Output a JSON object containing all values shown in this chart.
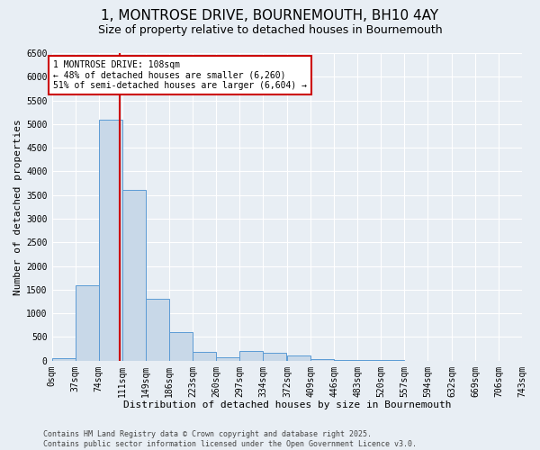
{
  "title_line1": "1, MONTROSE DRIVE, BOURNEMOUTH, BH10 4AY",
  "title_line2": "Size of property relative to detached houses in Bournemouth",
  "xlabel": "Distribution of detached houses by size in Bournemouth",
  "ylabel": "Number of detached properties",
  "bins": [
    0,
    37,
    74,
    111,
    149,
    186,
    223,
    260,
    297,
    334,
    372,
    409,
    446,
    483,
    520,
    557,
    594,
    632,
    669,
    706,
    743
  ],
  "bin_labels": [
    "0sqm",
    "37sqm",
    "74sqm",
    "111sqm",
    "149sqm",
    "186sqm",
    "223sqm",
    "260sqm",
    "297sqm",
    "334sqm",
    "372sqm",
    "409sqm",
    "446sqm",
    "483sqm",
    "520sqm",
    "557sqm",
    "594sqm",
    "632sqm",
    "669sqm",
    "706sqm",
    "743sqm"
  ],
  "bar_heights": [
    50,
    1600,
    5100,
    3600,
    1300,
    600,
    180,
    80,
    200,
    160,
    100,
    30,
    5,
    5,
    5,
    0,
    0,
    0,
    0,
    0
  ],
  "bar_color": "#c8d8e8",
  "bar_edge_color": "#5b9bd5",
  "property_size": 108,
  "annotation_text": "1 MONTROSE DRIVE: 108sqm\n← 48% of detached houses are smaller (6,260)\n51% of semi-detached houses are larger (6,604) →",
  "annotation_box_color": "#ffffff",
  "annotation_box_edge": "#cc0000",
  "red_line_color": "#cc0000",
  "ylim": [
    0,
    6500
  ],
  "yticks": [
    0,
    500,
    1000,
    1500,
    2000,
    2500,
    3000,
    3500,
    4000,
    4500,
    5000,
    5500,
    6000,
    6500
  ],
  "background_color": "#e8eef4",
  "plot_bg_color": "#e8eef4",
  "grid_color": "#ffffff",
  "footer_text": "Contains HM Land Registry data © Crown copyright and database right 2025.\nContains public sector information licensed under the Open Government Licence v3.0.",
  "title_fontsize": 11,
  "subtitle_fontsize": 9,
  "axis_label_fontsize": 8,
  "tick_fontsize": 7,
  "annotation_fontsize": 7,
  "footer_fontsize": 6
}
